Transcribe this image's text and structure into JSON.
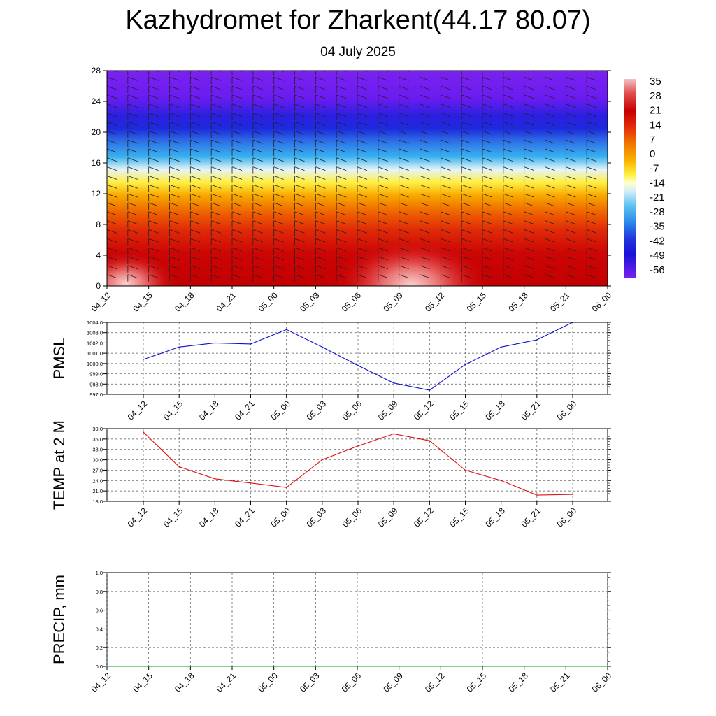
{
  "header": {
    "title": "Kazhydromet for Zharkent(44.17 80.07)",
    "subtitle": "04 July 2025"
  },
  "time_labels": [
    "04_12",
    "04_15",
    "04_18",
    "04_21",
    "05_00",
    "05_03",
    "05_06",
    "05_09",
    "05_12",
    "05_15",
    "05_18",
    "05_21",
    "06_00"
  ],
  "chart_data": [
    {
      "type": "heatmap",
      "x": [
        "04_12",
        "04_15",
        "04_18",
        "04_21",
        "05_00",
        "05_03",
        "05_06",
        "05_09",
        "05_12",
        "05_15",
        "05_18",
        "05_21",
        "06_00"
      ],
      "y_ticks": [
        0,
        4,
        8,
        12,
        16,
        20,
        24,
        28
      ],
      "ylim": [
        0,
        28
      ],
      "colorbar_labels": [
        "35",
        "28",
        "21",
        "14",
        "7",
        "0",
        "-7",
        "-14",
        "-21",
        "-28",
        "-35",
        "-42",
        "-49",
        "-56"
      ],
      "colorbar_colors": [
        "#f2b8b8",
        "#e05050",
        "#c80000",
        "#e23010",
        "#f08000",
        "#f8b800",
        "#ffef40",
        "#e8f4f8",
        "#8ad4f4",
        "#2ea8f0",
        "#2a6ae8",
        "#2222d8",
        "#3a10e8",
        "#7a20f0"
      ],
      "grid": false,
      "wind_barbs": true
    },
    {
      "type": "line",
      "ylabel": "PMSL",
      "x": [
        "04_12",
        "04_15",
        "04_18",
        "04_21",
        "05_00",
        "05_03",
        "05_06",
        "05_09",
        "05_12",
        "05_15",
        "05_18",
        "05_21",
        "06_00"
      ],
      "y_ticks": [
        "1004.0",
        "1003.0",
        "1002.0",
        "1001.0",
        "1000.0",
        "999.0",
        "998.0",
        "997.0"
      ],
      "ylim": [
        997.0,
        1004.0
      ],
      "series": [
        {
          "color": "#1010d0",
          "values": [
            1000.4,
            1001.6,
            1002.0,
            1001.9,
            1003.3,
            1001.6,
            999.8,
            998.1,
            997.4,
            999.9,
            1001.6,
            1002.3,
            1004.0
          ]
        }
      ],
      "grid": true
    },
    {
      "type": "line",
      "ylabel": "TEMP at 2 M",
      "x": [
        "04_12",
        "04_15",
        "04_18",
        "04_21",
        "05_00",
        "05_03",
        "05_06",
        "05_09",
        "05_12",
        "05_15",
        "05_18",
        "05_21",
        "06_00"
      ],
      "y_ticks": [
        "39.0",
        "36.0",
        "33.0",
        "30.0",
        "27.0",
        "24.0",
        "21.0",
        "18.0"
      ],
      "ylim": [
        18.0,
        39.0
      ],
      "series": [
        {
          "color": "#e01010",
          "values": [
            38.0,
            28.0,
            24.5,
            23.3,
            22.0,
            30.0,
            34.0,
            37.5,
            35.5,
            27.0,
            24.0,
            19.8,
            20.0
          ]
        }
      ],
      "grid": true
    },
    {
      "type": "line",
      "ylabel": "PRECIP, mm",
      "x": [
        "04_12",
        "04_15",
        "04_18",
        "04_21",
        "05_00",
        "05_03",
        "05_06",
        "05_09",
        "05_12",
        "05_15",
        "05_18",
        "05_21",
        "06_00"
      ],
      "y_ticks": [
        "1.0",
        "0.8",
        "0.6",
        "0.4",
        "0.2",
        "0.0"
      ],
      "ylim": [
        0.0,
        1.0
      ],
      "series": [
        {
          "color": "#10a010",
          "values": [
            0,
            0,
            0,
            0,
            0,
            0,
            0,
            0,
            0,
            0,
            0,
            0,
            0
          ]
        }
      ],
      "grid": true
    }
  ]
}
